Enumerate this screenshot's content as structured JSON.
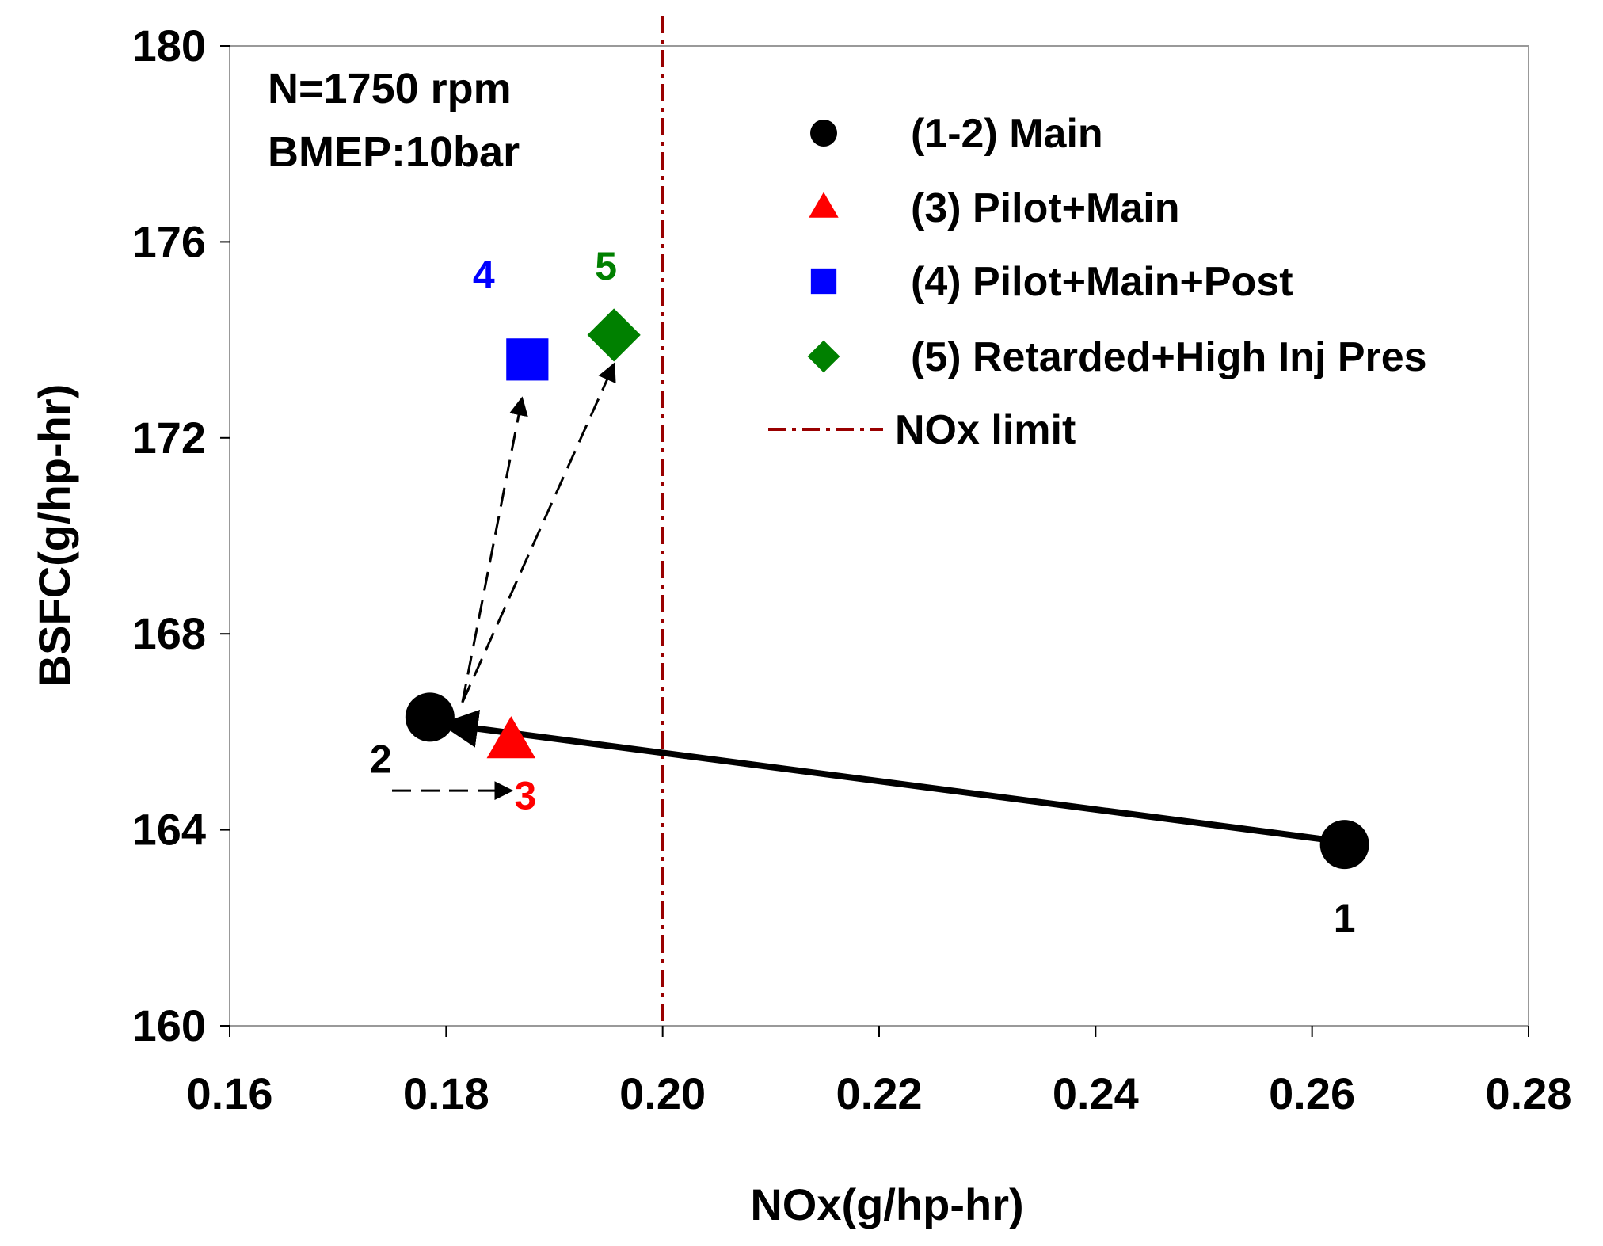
{
  "chart_data": {
    "type": "scatter",
    "title": "",
    "xlabel": "NOx(g/hp-hr)",
    "ylabel": "BSFC(g/hp-hr)",
    "xlim": [
      0.16,
      0.28
    ],
    "ylim": [
      160,
      180
    ],
    "x_ticks": [
      "0.16",
      "0.18",
      "0.20",
      "0.22",
      "0.24",
      "0.26",
      "0.28"
    ],
    "y_ticks": [
      "160",
      "164",
      "168",
      "172",
      "176",
      "180"
    ],
    "grid": false,
    "conditions": [
      "N=1750 rpm",
      "BMEP:10bar"
    ],
    "legend_placement": "top-right",
    "series": [
      {
        "name": "(1-2)  Main",
        "marker": "circle",
        "color": "#000000",
        "points": [
          {
            "label": "1",
            "x": 0.263,
            "y": 163.7
          },
          {
            "label": "2",
            "x": 0.1785,
            "y": 166.3
          }
        ]
      },
      {
        "name": "(3)  Pilot+Main",
        "marker": "triangle",
        "color": "#ff0000",
        "points": [
          {
            "label": "3",
            "x": 0.186,
            "y": 165.8
          }
        ]
      },
      {
        "name": "(4)  Pilot+Main+Post",
        "marker": "square",
        "color": "#0000ff",
        "points": [
          {
            "label": "4",
            "x": 0.1875,
            "y": 173.6
          }
        ]
      },
      {
        "name": "(5)  Retarded+High Inj Pres",
        "marker": "diamond",
        "color": "#008000",
        "points": [
          {
            "label": "5",
            "x": 0.1955,
            "y": 174.1
          }
        ]
      }
    ],
    "reference_lines": [
      {
        "name": "NOx limit",
        "x": 0.2,
        "style": "dash-dot",
        "color": "#990000"
      }
    ],
    "arrows": [
      {
        "from": [
          0.263,
          163.75
        ],
        "to": [
          0.18,
          166.15
        ],
        "style": "solid"
      },
      {
        "from": [
          0.175,
          164.8
        ],
        "to": [
          0.186,
          164.8
        ],
        "style": "dashed"
      },
      {
        "from": [
          0.1815,
          166.6
        ],
        "to": [
          0.187,
          172.8
        ],
        "style": "dashed"
      },
      {
        "from": [
          0.1815,
          166.6
        ],
        "to": [
          0.1955,
          173.5
        ],
        "style": "dashed"
      }
    ]
  }
}
